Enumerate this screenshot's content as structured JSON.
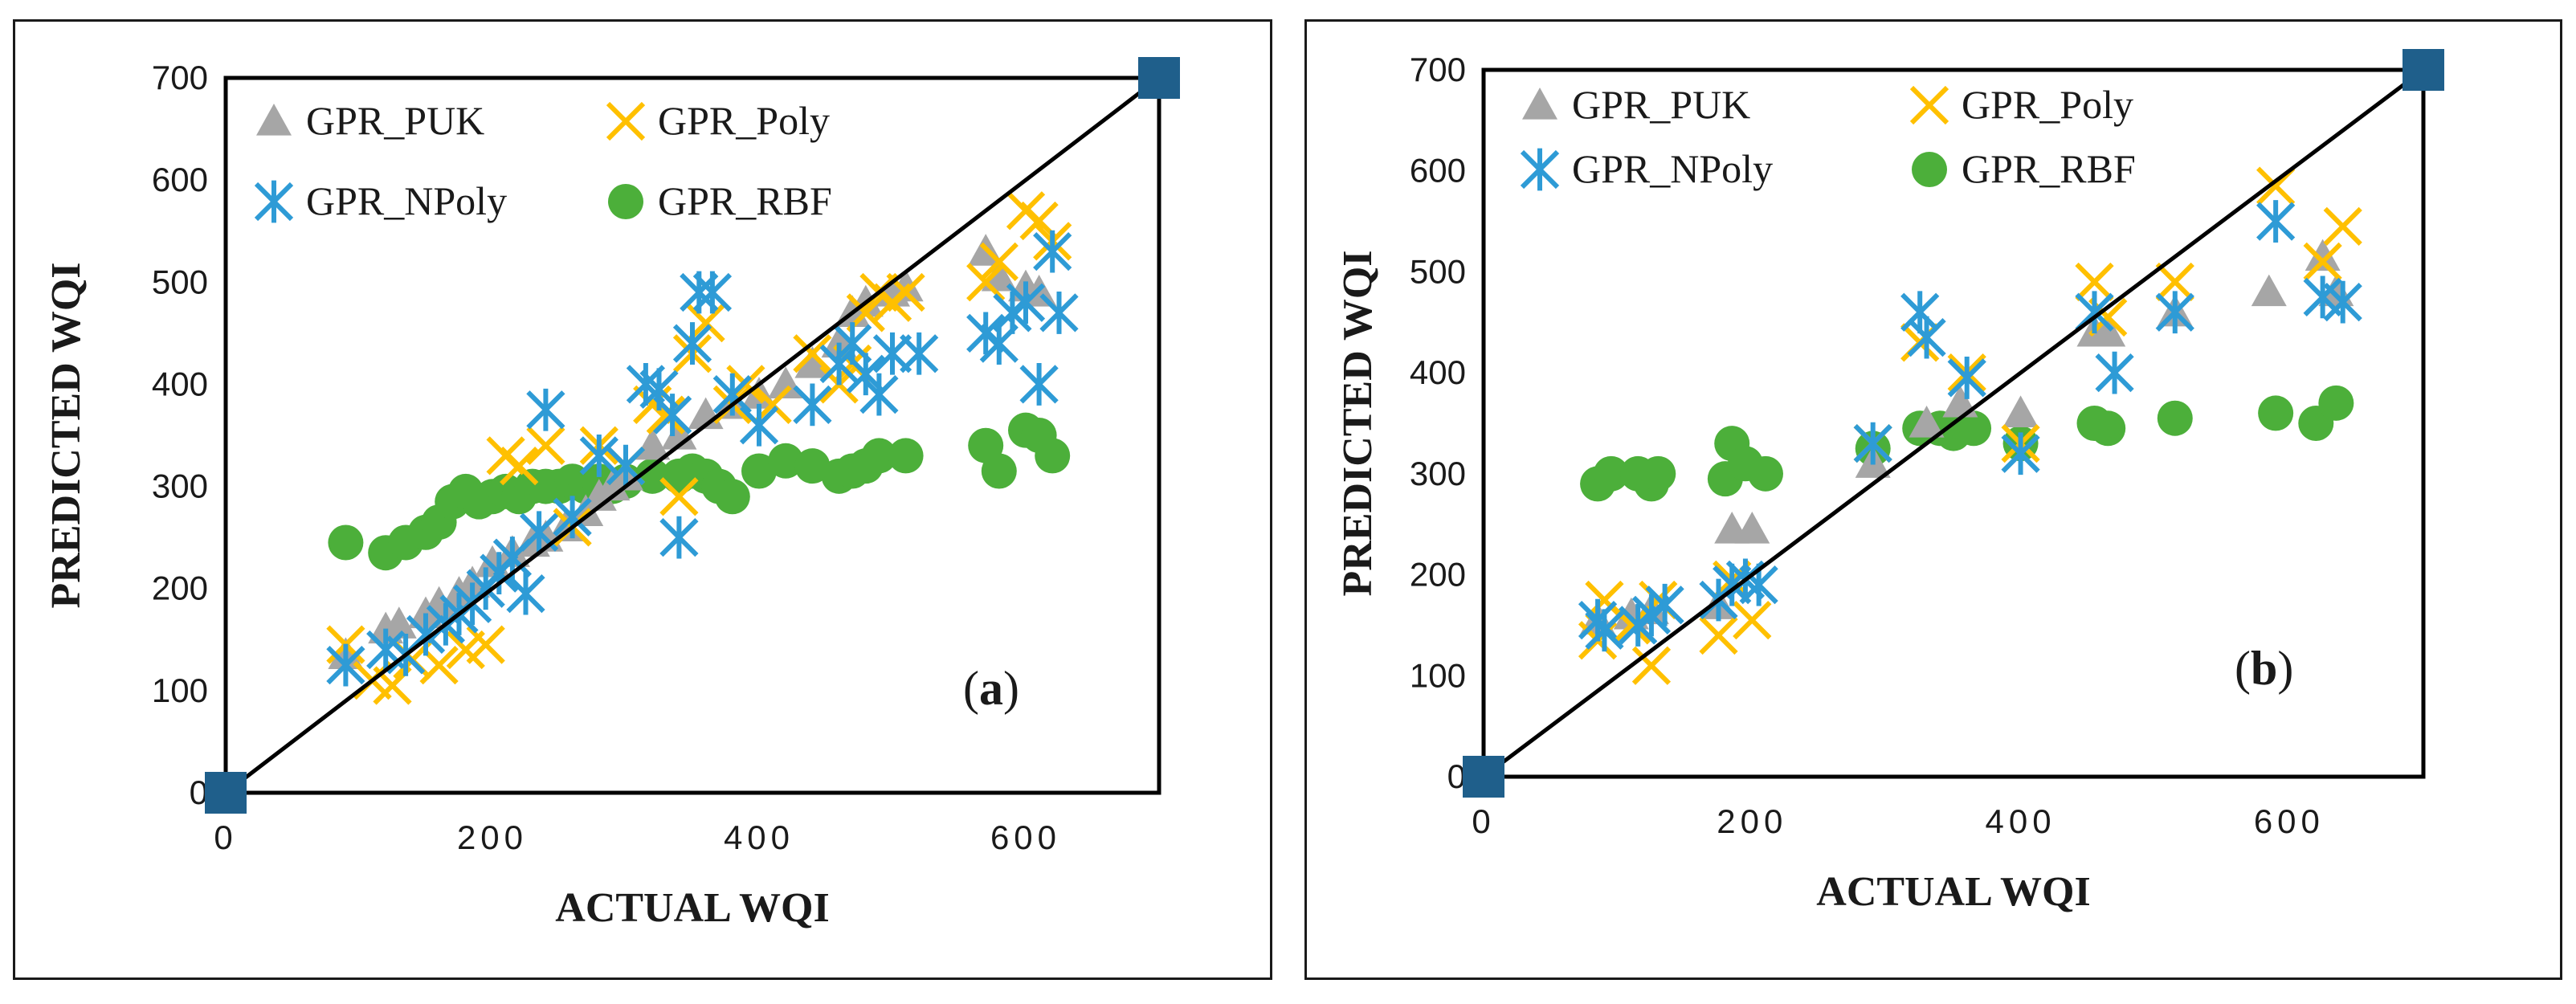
{
  "colors": {
    "GPR_PUK": "#a6a6a6",
    "GPR_Poly": "#ffc000",
    "GPR_NPoly": "#2e9bd6",
    "GPR_RBF": "#4caf3a",
    "endpoint": "#1f5f8b",
    "line": "#000000"
  },
  "chart_data": [
    {
      "type": "scatter",
      "panel": "(a)",
      "label_open": "(",
      "label_letter": "a",
      "label_close": ")",
      "xlabel": "ACTUAL WQI",
      "ylabel": "PREDICTED WQI",
      "xlim": [
        0,
        700
      ],
      "ylim": [
        0,
        700
      ],
      "xticks": [
        0,
        200,
        400,
        600
      ],
      "xtick_labels": [
        "0",
        "200",
        "400",
        "600"
      ],
      "yticks": [
        0,
        100,
        200,
        300,
        400,
        500,
        600,
        700
      ],
      "ytick_labels": [
        "0",
        "100",
        "200",
        "300",
        "400",
        "500",
        "600",
        "700"
      ],
      "legend": [
        "GPR_PUK",
        "GPR_Poly",
        "GPR_NPoly",
        "GPR_RBF"
      ],
      "reference_line": [
        [
          0,
          0
        ],
        [
          700,
          700
        ]
      ],
      "series": [
        {
          "name": "GPR_PUK",
          "marker": "triangle",
          "points": [
            [
              90,
              135
            ],
            [
              120,
              160
            ],
            [
              130,
              165
            ],
            [
              150,
              175
            ],
            [
              160,
              185
            ],
            [
              175,
              195
            ],
            [
              185,
              205
            ],
            [
              200,
              225
            ],
            [
              215,
              235
            ],
            [
              230,
              245
            ],
            [
              240,
              250
            ],
            [
              255,
              260
            ],
            [
              270,
              275
            ],
            [
              280,
              290
            ],
            [
              290,
              300
            ],
            [
              300,
              310
            ],
            [
              320,
              340
            ],
            [
              340,
              350
            ],
            [
              360,
              370
            ],
            [
              380,
              380
            ],
            [
              400,
              390
            ],
            [
              420,
              400
            ],
            [
              440,
              420
            ],
            [
              460,
              440
            ],
            [
              470,
              470
            ],
            [
              480,
              480
            ],
            [
              500,
              490
            ],
            [
              510,
              495
            ],
            [
              570,
              530
            ],
            [
              580,
              505
            ],
            [
              600,
              495
            ],
            [
              610,
              490
            ]
          ]
        },
        {
          "name": "GPR_Poly",
          "marker": "x",
          "points": [
            [
              90,
              145
            ],
            [
              110,
              110
            ],
            [
              125,
              105
            ],
            [
              140,
              130
            ],
            [
              160,
              125
            ],
            [
              180,
              140
            ],
            [
              195,
              145
            ],
            [
              210,
              330
            ],
            [
              220,
              320
            ],
            [
              240,
              340
            ],
            [
              260,
              260
            ],
            [
              280,
              340
            ],
            [
              300,
              320
            ],
            [
              320,
              380
            ],
            [
              330,
              370
            ],
            [
              340,
              290
            ],
            [
              350,
              430
            ],
            [
              360,
              460
            ],
            [
              380,
              380
            ],
            [
              390,
              400
            ],
            [
              410,
              380
            ],
            [
              440,
              430
            ],
            [
              460,
              400
            ],
            [
              470,
              420
            ],
            [
              480,
              470
            ],
            [
              490,
              490
            ],
            [
              500,
              480
            ],
            [
              510,
              490
            ],
            [
              570,
              500
            ],
            [
              580,
              520
            ],
            [
              600,
              570
            ],
            [
              610,
              560
            ],
            [
              620,
              540
            ]
          ]
        },
        {
          "name": "GPR_NPoly",
          "marker": "asterisk",
          "points": [
            [
              90,
              125
            ],
            [
              120,
              140
            ],
            [
              135,
              135
            ],
            [
              150,
              155
            ],
            [
              165,
              165
            ],
            [
              175,
              175
            ],
            [
              185,
              185
            ],
            [
              195,
              200
            ],
            [
              205,
              215
            ],
            [
              215,
              230
            ],
            [
              225,
              195
            ],
            [
              235,
              255
            ],
            [
              240,
              375
            ],
            [
              260,
              270
            ],
            [
              280,
              330
            ],
            [
              300,
              320
            ],
            [
              315,
              400
            ],
            [
              325,
              395
            ],
            [
              335,
              370
            ],
            [
              340,
              250
            ],
            [
              350,
              440
            ],
            [
              355,
              490
            ],
            [
              365,
              490
            ],
            [
              380,
              390
            ],
            [
              400,
              360
            ],
            [
              440,
              380
            ],
            [
              460,
              420
            ],
            [
              470,
              440
            ],
            [
              480,
              410
            ],
            [
              490,
              390
            ],
            [
              500,
              430
            ],
            [
              520,
              430
            ],
            [
              570,
              450
            ],
            [
              580,
              440
            ],
            [
              590,
              470
            ],
            [
              600,
              480
            ],
            [
              610,
              400
            ],
            [
              620,
              530
            ],
            [
              625,
              470
            ]
          ]
        },
        {
          "name": "GPR_RBF",
          "marker": "circle",
          "points": [
            [
              90,
              245
            ],
            [
              120,
              235
            ],
            [
              135,
              245
            ],
            [
              150,
              255
            ],
            [
              160,
              265
            ],
            [
              170,
              285
            ],
            [
              180,
              295
            ],
            [
              190,
              285
            ],
            [
              200,
              290
            ],
            [
              210,
              295
            ],
            [
              220,
              290
            ],
            [
              230,
              300
            ],
            [
              240,
              300
            ],
            [
              250,
              300
            ],
            [
              260,
              305
            ],
            [
              270,
              300
            ],
            [
              280,
              305
            ],
            [
              290,
              300
            ],
            [
              300,
              305
            ],
            [
              320,
              310
            ],
            [
              340,
              310
            ],
            [
              350,
              315
            ],
            [
              360,
              310
            ],
            [
              370,
              300
            ],
            [
              380,
              290
            ],
            [
              400,
              315
            ],
            [
              420,
              325
            ],
            [
              440,
              320
            ],
            [
              460,
              310
            ],
            [
              470,
              315
            ],
            [
              480,
              320
            ],
            [
              490,
              330
            ],
            [
              510,
              330
            ],
            [
              570,
              340
            ],
            [
              580,
              315
            ],
            [
              600,
              355
            ],
            [
              610,
              350
            ],
            [
              620,
              330
            ]
          ]
        }
      ]
    },
    {
      "type": "scatter",
      "panel": "(b)",
      "label_open": "(",
      "label_letter": "b",
      "label_close": ")",
      "xlabel": "ACTUAL WQI",
      "ylabel": "PREDICTED WQI",
      "xlim": [
        0,
        700
      ],
      "ylim": [
        0,
        700
      ],
      "xticks": [
        0,
        200,
        400,
        600
      ],
      "xtick_labels": [
        "0",
        "200",
        "400",
        "600"
      ],
      "yticks": [
        0,
        100,
        200,
        300,
        400,
        500,
        600,
        700
      ],
      "ytick_labels": [
        "0",
        "100",
        "200",
        "300",
        "400",
        "500",
        "600",
        "700"
      ],
      "legend": [
        "GPR_PUK",
        "GPR_Poly",
        "GPR_NPoly",
        "GPR_RBF"
      ],
      "reference_line": [
        [
          0,
          0
        ],
        [
          700,
          700
        ]
      ],
      "series": [
        {
          "name": "GPR_PUK",
          "marker": "triangle",
          "points": [
            [
              85,
              155
            ],
            [
              110,
              160
            ],
            [
              125,
              165
            ],
            [
              175,
              170
            ],
            [
              185,
              245
            ],
            [
              200,
              245
            ],
            [
              290,
              310
            ],
            [
              330,
              350
            ],
            [
              355,
              370
            ],
            [
              400,
              360
            ],
            [
              455,
              440
            ],
            [
              465,
              440
            ],
            [
              515,
              460
            ],
            [
              585,
              480
            ],
            [
              625,
              515
            ],
            [
              635,
              480
            ]
          ]
        },
        {
          "name": "GPR_Poly",
          "marker": "x",
          "points": [
            [
              85,
              135
            ],
            [
              90,
              175
            ],
            [
              110,
              150
            ],
            [
              125,
              110
            ],
            [
              130,
              175
            ],
            [
              175,
              140
            ],
            [
              185,
              195
            ],
            [
              200,
              155
            ],
            [
              290,
              330
            ],
            [
              325,
              430
            ],
            [
              360,
              400
            ],
            [
              400,
              330
            ],
            [
              455,
              490
            ],
            [
              465,
              455
            ],
            [
              515,
              490
            ],
            [
              590,
              585
            ],
            [
              625,
              510
            ],
            [
              640,
              545
            ]
          ]
        },
        {
          "name": "GPR_NPoly",
          "marker": "asterisk",
          "points": [
            [
              85,
              155
            ],
            [
              90,
              145
            ],
            [
              115,
              150
            ],
            [
              125,
              160
            ],
            [
              135,
              170
            ],
            [
              175,
              175
            ],
            [
              185,
              190
            ],
            [
              195,
              195
            ],
            [
              205,
              190
            ],
            [
              290,
              330
            ],
            [
              325,
              460
            ],
            [
              330,
              435
            ],
            [
              360,
              395
            ],
            [
              400,
              320
            ],
            [
              455,
              460
            ],
            [
              470,
              400
            ],
            [
              515,
              460
            ],
            [
              590,
              550
            ],
            [
              625,
              475
            ],
            [
              640,
              470
            ]
          ]
        },
        {
          "name": "GPR_RBF",
          "marker": "circle",
          "points": [
            [
              85,
              290
            ],
            [
              95,
              300
            ],
            [
              115,
              300
            ],
            [
              125,
              290
            ],
            [
              130,
              300
            ],
            [
              180,
              295
            ],
            [
              185,
              330
            ],
            [
              195,
              310
            ],
            [
              210,
              300
            ],
            [
              290,
              325
            ],
            [
              325,
              345
            ],
            [
              340,
              345
            ],
            [
              350,
              340
            ],
            [
              365,
              345
            ],
            [
              400,
              330
            ],
            [
              455,
              350
            ],
            [
              465,
              345
            ],
            [
              515,
              355
            ],
            [
              590,
              360
            ],
            [
              620,
              350
            ],
            [
              635,
              370
            ]
          ]
        }
      ]
    }
  ]
}
